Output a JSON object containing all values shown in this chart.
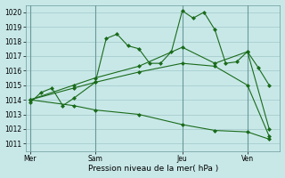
{
  "background_color": "#c8e8e8",
  "grid_color": "#a0c8c8",
  "line_color": "#1a6b1a",
  "marker_color": "#1a6b1a",
  "title": "Pression niveau de la mer( hPa )",
  "ylim": [
    1010.5,
    1020.5
  ],
  "yticks": [
    1011,
    1012,
    1013,
    1014,
    1015,
    1016,
    1017,
    1018,
    1019,
    1020
  ],
  "xtick_labels": [
    "Mer",
    "Sam",
    "Jeu",
    "Ven"
  ],
  "xtick_positions": [
    0,
    3,
    7,
    10
  ],
  "vline_positions": [
    0,
    3,
    7,
    10
  ],
  "xlim": [
    -0.2,
    11.5
  ],
  "series": [
    {
      "x": [
        0,
        0.5,
        1.0,
        1.5,
        2.0,
        3.0,
        3.5,
        4.0,
        4.5,
        5.0,
        5.5,
        6.0,
        6.5,
        7.0,
        7.5,
        8.0,
        8.5,
        9.0,
        9.5,
        10.0,
        10.5,
        11.0
      ],
      "y": [
        1013.8,
        1014.5,
        1014.8,
        1013.6,
        1014.1,
        1015.2,
        1018.2,
        1018.5,
        1017.7,
        1017.5,
        1016.5,
        1016.5,
        1017.3,
        1020.1,
        1019.6,
        1020.0,
        1018.8,
        1016.5,
        1016.6,
        1017.3,
        1016.2,
        1015.0
      ]
    },
    {
      "x": [
        0,
        2.0,
        3.0,
        5.0,
        7.0,
        8.5,
        10.0,
        11.0
      ],
      "y": [
        1014.0,
        1015.0,
        1015.5,
        1016.3,
        1017.6,
        1016.5,
        1017.3,
        1012.0
      ]
    },
    {
      "x": [
        0,
        2.0,
        3.0,
        5.0,
        7.0,
        8.5,
        10.0,
        11.0
      ],
      "y": [
        1014.0,
        1014.8,
        1015.2,
        1015.9,
        1016.5,
        1016.3,
        1015.0,
        1011.5
      ]
    },
    {
      "x": [
        0,
        2.0,
        3.0,
        5.0,
        7.0,
        8.5,
        10.0,
        11.0
      ],
      "y": [
        1014.0,
        1013.6,
        1013.3,
        1013.0,
        1012.3,
        1011.9,
        1011.8,
        1011.3
      ]
    }
  ]
}
